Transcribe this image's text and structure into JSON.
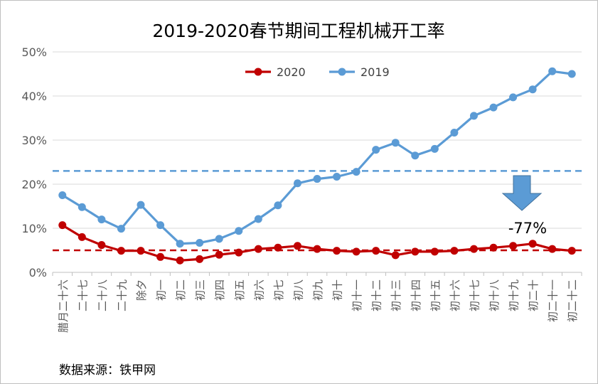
{
  "chart_data": {
    "type": "line",
    "title": "2019-2020春节期间工程机械开工率",
    "xlabel": "",
    "ylabel": "",
    "ylim": [
      0,
      50
    ],
    "yticks": [
      "0%",
      "10%",
      "20%",
      "30%",
      "40%",
      "50%"
    ],
    "categories": [
      "腊月二十六",
      "二十七",
      "二十八",
      "二十九",
      "除夕",
      "初一",
      "初二",
      "初三",
      "初四",
      "初五",
      "初六",
      "初七",
      "初八",
      "初九",
      "初十",
      "初十一",
      "初十二",
      "初十三",
      "初十四",
      "初十五",
      "初十六",
      "初十七",
      "初十八",
      "初十九",
      "初二十",
      "初二十一",
      "初二十二"
    ],
    "series": [
      {
        "name": "2020",
        "color": "#c00000",
        "values": [
          10.7,
          8.0,
          6.2,
          4.9,
          4.9,
          3.5,
          2.7,
          3.0,
          4.0,
          4.5,
          5.3,
          5.6,
          6.0,
          5.3,
          4.9,
          4.7,
          4.9,
          3.9,
          4.7,
          4.7,
          4.9,
          5.3,
          5.6,
          6.0,
          6.5,
          5.3,
          4.9
        ],
        "avg_line": 5.0
      },
      {
        "name": "2019",
        "color": "#5b9bd5",
        "values": [
          17.5,
          14.8,
          12.0,
          9.9,
          15.3,
          10.7,
          6.5,
          6.7,
          7.6,
          9.4,
          12.1,
          15.2,
          20.2,
          21.2,
          21.7,
          22.8,
          27.8,
          29.4,
          26.5,
          28.0,
          31.7,
          35.5,
          37.4,
          39.7,
          41.5,
          45.6,
          45.0
        ],
        "avg_line": 23.0
      }
    ],
    "grid": true,
    "legend_position": "top-center",
    "annotation": {
      "text": "-77%",
      "arrow_color": "#5b9bd5",
      "arrow_direction": "down"
    }
  },
  "footer": {
    "source": "数据来源：铁甲网"
  }
}
